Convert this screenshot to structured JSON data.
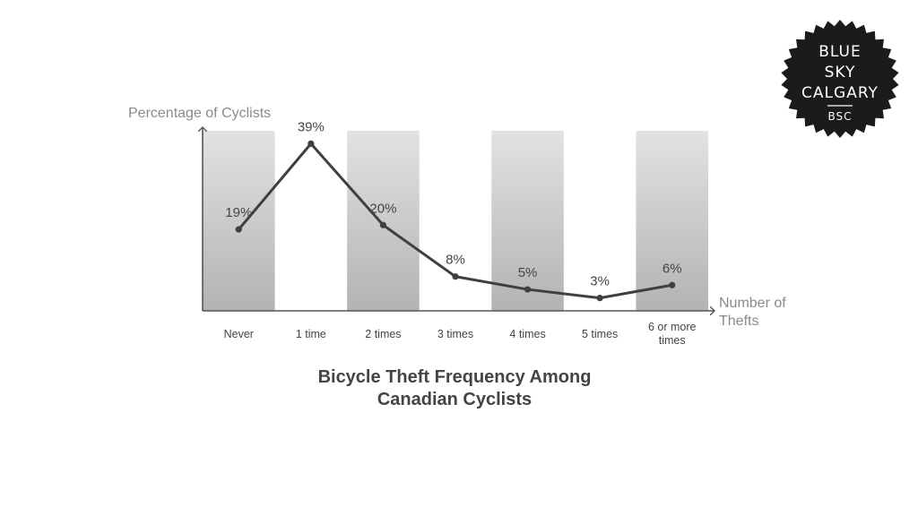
{
  "chart_data": {
    "type": "line",
    "title_lines": [
      "Bicycle Theft Frequency Among",
      "Canadian Cyclists"
    ],
    "ylabel": "Percentage of Cyclists",
    "xlabel_lines": [
      "Number of",
      "Thefts"
    ],
    "categories": [
      [
        "Never"
      ],
      [
        "1 time"
      ],
      [
        "2 times"
      ],
      [
        "3 times"
      ],
      [
        "4 times"
      ],
      [
        "5 times"
      ],
      [
        "6 or more",
        "times"
      ]
    ],
    "values": [
      19,
      39,
      20,
      8,
      5,
      3,
      6
    ],
    "data_labels": [
      "19%",
      "39%",
      "20%",
      "8%",
      "5%",
      "3%",
      "6%"
    ],
    "ylim": [
      0,
      42
    ],
    "shaded_columns": [
      0,
      2,
      4,
      6
    ],
    "colors": {
      "line": "#3f3f3f",
      "axis": "#555555",
      "label": "#444444",
      "axis_title": "#8a8a8a",
      "band_top": "#e2e2e2",
      "band_bottom": "#b3b3b3",
      "logo_bg": "#1b1b1b",
      "logo_text": "#ffffff"
    }
  },
  "logo": {
    "lines": [
      "BLUE",
      "SKY",
      "CALGARY"
    ],
    "abbr": "BSC"
  }
}
